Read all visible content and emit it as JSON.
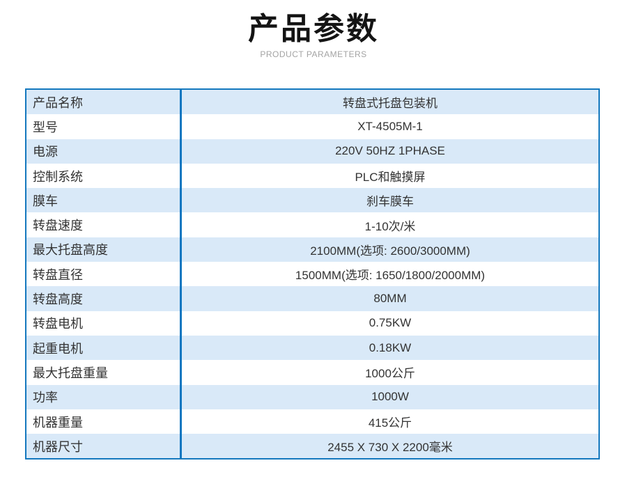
{
  "header": {
    "title": "产品参数",
    "subtitle": "PRODUCT PARAMETERS"
  },
  "colors": {
    "border_blue": "#1478be",
    "divider_blue": "#0d76c0",
    "row_alt_bg": "#d9e9f8",
    "row_bg": "#ffffff",
    "text": "#333333",
    "title_text": "#141414",
    "subtitle_gray": "#a3a3a3"
  },
  "table": {
    "rows": [
      {
        "label": "产品名称",
        "value": "转盘式托盘包装机"
      },
      {
        "label": "型号",
        "value": "XT-4505M-1"
      },
      {
        "label": "电源",
        "value": "220V 50HZ 1PHASE"
      },
      {
        "label": "控制系统",
        "value": "PLC和触摸屏"
      },
      {
        "label": "膜车",
        "value": "刹车膜车"
      },
      {
        "label": "转盘速度",
        "value": "1-10次/米"
      },
      {
        "label": "最大托盘高度",
        "value": "2100MM(选项: 2600/3000MM)"
      },
      {
        "label": "转盘直径",
        "value": "1500MM(选项: 1650/1800/2000MM)"
      },
      {
        "label": "转盘高度",
        "value": "80MM"
      },
      {
        "label": "转盘电机",
        "value": "0.75KW"
      },
      {
        "label": "起重电机",
        "value": "0.18KW"
      },
      {
        "label": "最大托盘重量",
        "value": "1000公斤"
      },
      {
        "label": "功率",
        "value": "1000W"
      },
      {
        "label": "机器重量",
        "value": "415公斤"
      },
      {
        "label": "机器尺寸",
        "value": "2455 X 730 X 2200毫米"
      }
    ]
  }
}
